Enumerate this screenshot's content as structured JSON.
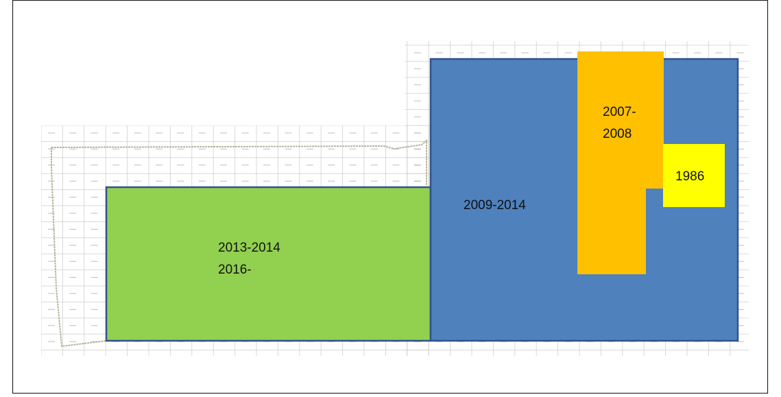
{
  "regions": [
    {
      "lines": [
        "2013-2014",
        "2016-"
      ]
    },
    {
      "lines": [
        "2009-2014"
      ]
    },
    {
      "lines": [
        "2007-",
        "2008"
      ]
    },
    {
      "lines": [
        "1986"
      ]
    }
  ]
}
